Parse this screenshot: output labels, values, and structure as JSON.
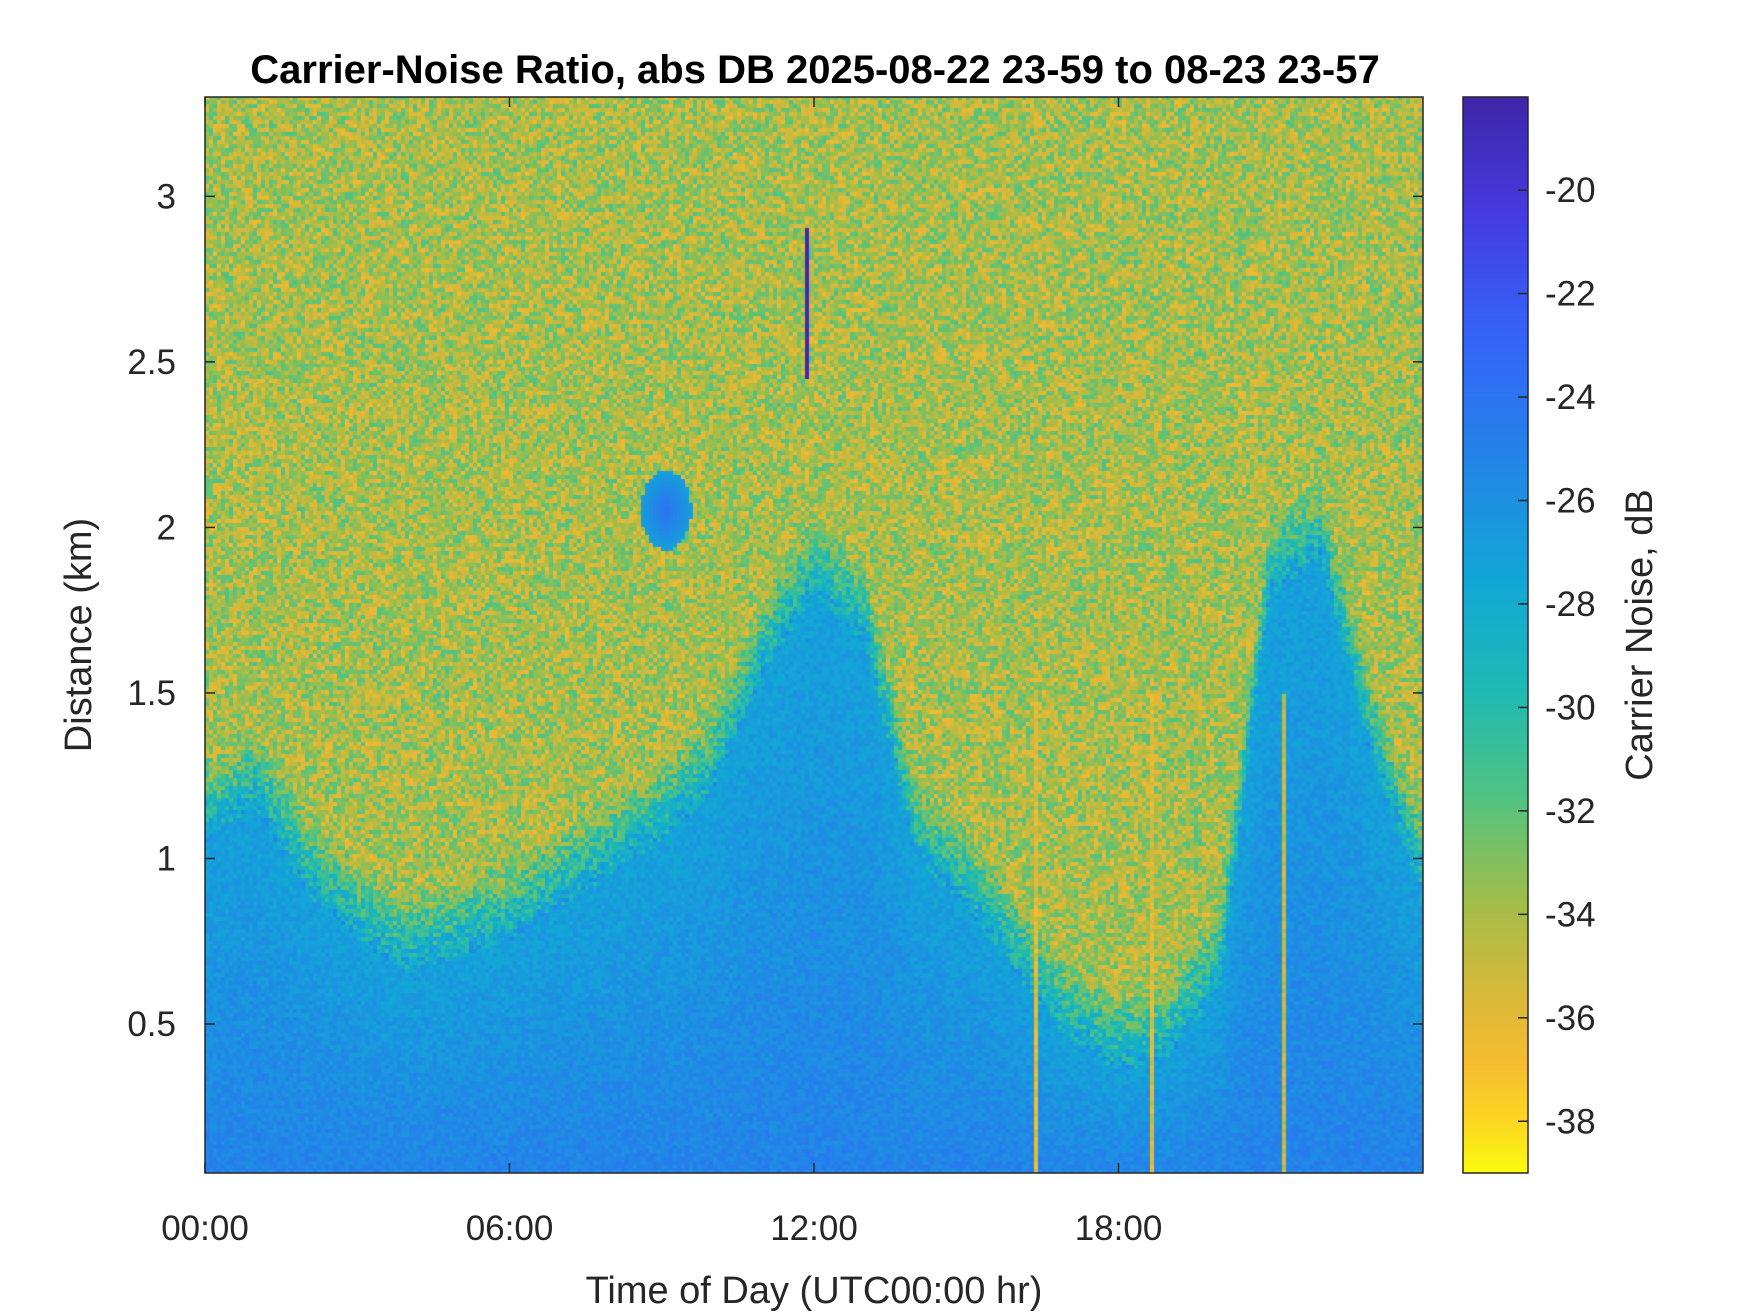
{
  "chart_data": {
    "type": "heatmap",
    "title": "Carrier-Noise Ratio, abs DB 2025-08-22 23-59 to 08-23 23-57",
    "xlabel": "Time of Day (UTC00:00 hr)",
    "ylabel": "Distance (km)",
    "colorbar_label": "Carrier Noise, dB",
    "xlim": [
      0,
      24
    ],
    "ylim": [
      0.05,
      3.3
    ],
    "clim": [
      -39,
      -18.2
    ],
    "x_ticks": [
      0,
      6,
      12,
      18
    ],
    "x_tick_labels": [
      "00:00",
      "06:00",
      "12:00",
      "18:00"
    ],
    "y_ticks": [
      0.5,
      1,
      1.5,
      2,
      2.5,
      3
    ],
    "y_tick_labels": [
      "0.5",
      "1",
      "1.5",
      "2",
      "2.5",
      "3"
    ],
    "colorbar_ticks": [
      -20,
      -22,
      -24,
      -26,
      -28,
      -30,
      -32,
      -34,
      -36,
      -38
    ],
    "colorbar_tick_labels": [
      "-20",
      "-22",
      "-24",
      "-26",
      "-28",
      "-30",
      "-32",
      "-34",
      "-36",
      "-38"
    ],
    "colormap": "parula",
    "grid": false,
    "colormap_reversed": true,
    "bottom_layer_depth_km_by_hour": [
      [
        0,
        1.05
      ],
      [
        1,
        1.15
      ],
      [
        2,
        0.9
      ],
      [
        3,
        0.75
      ],
      [
        4,
        0.65
      ],
      [
        5,
        0.7
      ],
      [
        6,
        0.75
      ],
      [
        7,
        0.85
      ],
      [
        8,
        0.95
      ],
      [
        9,
        1.05
      ],
      [
        10,
        1.2
      ],
      [
        11,
        1.55
      ],
      [
        12,
        1.8
      ],
      [
        13,
        1.65
      ],
      [
        14,
        1.0
      ],
      [
        15,
        0.85
      ],
      [
        16,
        0.65
      ],
      [
        17,
        0.45
      ],
      [
        18,
        0.35
      ],
      [
        19,
        0.4
      ],
      [
        20,
        0.6
      ],
      [
        21,
        1.8
      ],
      [
        22,
        1.9
      ],
      [
        23,
        1.3
      ],
      [
        24,
        0.9
      ]
    ],
    "surface_value_db": -25,
    "upper_noise_value_db": -34,
    "notable_features": [
      {
        "type": "strong_return_streak",
        "x_hours": 11.9,
        "y_range_km": [
          2.45,
          2.9
        ],
        "value_db": -18.5
      },
      {
        "type": "cloud_patch",
        "x_hours": 9.1,
        "y_km": 2.05,
        "value_db": -24
      },
      {
        "type": "gap_line",
        "x_hours": 16.4,
        "value_db": -36
      },
      {
        "type": "gap_line",
        "x_hours": 18.7,
        "value_db": -36
      },
      {
        "type": "gap_line",
        "x_hours": 21.3,
        "value_db": -35
      }
    ]
  }
}
